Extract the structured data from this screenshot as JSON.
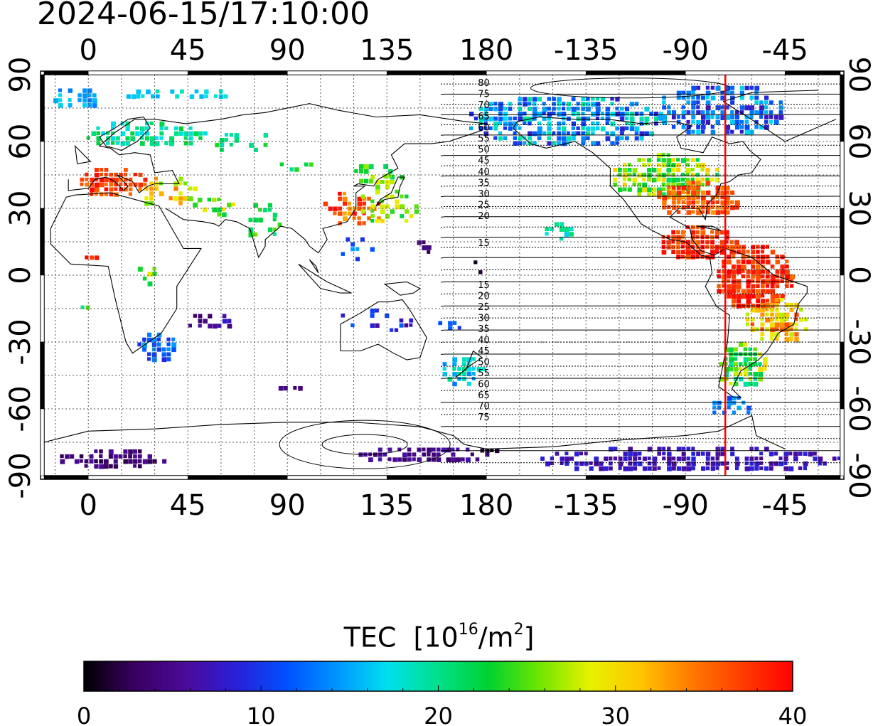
{
  "timestamp": "2024-06-15/17:10:00",
  "map": {
    "lon_ticks_top": [
      "0",
      "45",
      "90",
      "135",
      "180",
      "-135",
      "-90",
      "-45"
    ],
    "lon_ticks_bottom": [
      "0",
      "45",
      "90",
      "135",
      "180",
      "-135",
      "-90",
      "-45"
    ],
    "lat_ticks_left": [
      "90",
      "60",
      "30",
      "0",
      "-30",
      "-60",
      "-90"
    ],
    "lat_ticks_right": [
      "90",
      "60",
      "30",
      "0",
      "-30",
      "-60",
      "-90"
    ],
    "contour_labels_north": [
      "80",
      "75",
      "70",
      "65",
      "60",
      "55",
      "50",
      "45",
      "40",
      "35",
      "30",
      "25",
      "20",
      "15"
    ],
    "contour_labels_south": [
      "15",
      "20",
      "25",
      "30",
      "35",
      "40",
      "45",
      "50",
      "55",
      "60",
      "65",
      "70",
      "75"
    ],
    "terminator_color": "#ff0000",
    "terminator_longitude": -72
  },
  "colorbar": {
    "title_main": "TEC",
    "title_unit_base": "[10",
    "title_unit_exp": "16",
    "title_unit_mid": "/m",
    "title_unit_exp2": "2",
    "title_unit_end": "]",
    "tick_labels": [
      "0",
      "10",
      "20",
      "30",
      "40"
    ],
    "min": 0,
    "max": 40,
    "colors": [
      "#000000",
      "#3a0060",
      "#4b0a9a",
      "#2a1fd6",
      "#0050ff",
      "#0095ff",
      "#00e0ee",
      "#00e08a",
      "#00d230",
      "#6ee600",
      "#e8f200",
      "#ffc400",
      "#ff7a00",
      "#ff3c00",
      "#ff0000"
    ]
  }
}
